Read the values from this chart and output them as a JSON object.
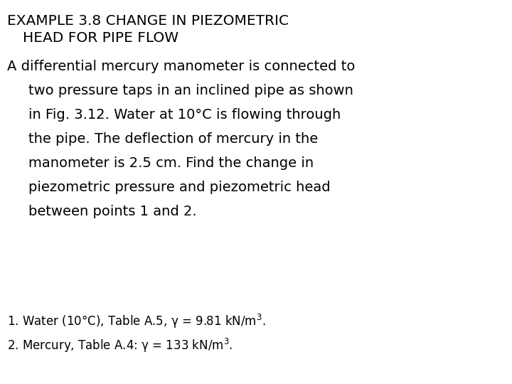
{
  "background_color": "#ffffff",
  "title_line1": "EXAMPLE 3.8 CHANGE IN PIEZOMETRIC",
  "title_line2": "HEAD FOR PIPE FLOW",
  "title_fontsize": 14.5,
  "body_text_first": "A differential mercury manometer is connected to",
  "body_text_rest": [
    "two pressure taps in an inclined pipe as shown",
    "in Fig. 3.12. Water at 10°C is flowing through",
    "the pipe. The deflection of mercury in the",
    "manometer is 2.5 cm. Find the change in",
    "piezometric pressure and piezometric head",
    "between points 1 and 2."
  ],
  "body_fontsize": 14.0,
  "note1": "1. Water (10°C), Table A.5, γ = 9.81 kN/m$^3$.",
  "note2": "2. Mercury, Table A.4: γ = 133 kN/m$^3$.",
  "note_fontsize": 12.0,
  "text_color": "#000000"
}
